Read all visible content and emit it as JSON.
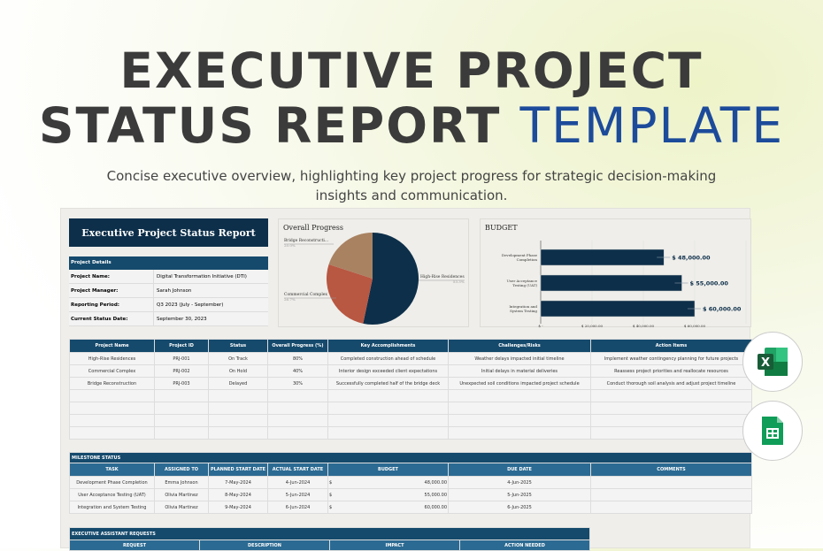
{
  "hero": {
    "title_line1": "EXECUTIVE PROJECT",
    "title_line2_dark": "STATUS REPORT",
    "title_line2_accent": "TEMPLATE",
    "subtitle": "Concise executive overview, highlighting key project progress for strategic decision-making insights and communication."
  },
  "report": {
    "title": "Executive Project Status Report",
    "details": {
      "header": "Project Details",
      "rows": [
        {
          "label": "Project Name:",
          "value": "Digital Transformation Initiative (DTI)"
        },
        {
          "label": "Project Manager:",
          "value": "Sarah Johnson"
        },
        {
          "label": "Reporting Period:",
          "value": "Q3 2023 (July - September)"
        },
        {
          "label": "Current Status Date:",
          "value": "September 30, 2023"
        }
      ]
    }
  },
  "chart_data": [
    {
      "type": "pie",
      "title": "Overall Progress",
      "slices": [
        {
          "label": "High-Rise Residences",
          "value": 53.3,
          "pct": "53.3%",
          "color": "#0d2f4a"
        },
        {
          "label": "Commercial Complex",
          "value": 26.7,
          "pct": "26.7%",
          "color": "#b85742"
        },
        {
          "label": "Bridge Reconstructi...",
          "value": 20.0,
          "pct": "20.0%",
          "color": "#a98262"
        }
      ]
    },
    {
      "type": "bar",
      "orientation": "horizontal",
      "title": "BUDGET",
      "categories": [
        "Development Phase Completion",
        "User Acceptance Testing (UAT)",
        "Integration and System Testing"
      ],
      "values": [
        48000,
        55000,
        60000
      ],
      "data_labels": [
        "$ 48,000.00",
        "$ 55,000.00",
        "$ 60,000.00"
      ],
      "xlim": [
        0,
        80000
      ],
      "tick_labels": [
        "$ -",
        "$ 20,000.00",
        "$ 40,000.00",
        "$ 60,000.00"
      ],
      "grid": true,
      "color": "#0d2f4a"
    }
  ],
  "projects": {
    "headers": [
      "Project Name",
      "Project ID",
      "Status",
      "Overall Progress (%)",
      "Key Accomplishments",
      "Challenges/Risks",
      "Action Items"
    ],
    "rows": [
      [
        "High-Rise Residences",
        "PRJ-001",
        "On Track",
        "80%",
        "Completed construction ahead of schedule",
        "Weather delays impacted initial timeline",
        "Implement weather contingency planning for future projects"
      ],
      [
        "Commercial Complex",
        "PRJ-002",
        "On Hold",
        "40%",
        "Interior design exceeded client expectations",
        "Initial delays in material deliveries",
        "Reassess project priorities and reallocate resources"
      ],
      [
        "Bridge Reconstruction",
        "PRJ-003",
        "Delayed",
        "30%",
        "Successfully completed half of the bridge deck",
        "Unexpected soil conditions impacted project schedule",
        "Conduct thorough soil analysis and adjust project timeline"
      ]
    ]
  },
  "milestones": {
    "title": "MILESTONE STATUS",
    "headers": [
      "TASK",
      "ASSIGNED TO",
      "PLANNED START DATE",
      "ACTUAL START DATE",
      "BUDGET",
      "DUE DATE",
      "COMMENTS"
    ],
    "rows": [
      [
        "Development Phase Completion",
        "Emma Johnson",
        "7-May-2024",
        "4-Jun-2024",
        "$",
        "48,000.00",
        "4-Jun-2025",
        ""
      ],
      [
        "User Acceptance Testing (UAT)",
        "Olivia Martinez",
        "8-May-2024",
        "5-Jun-2024",
        "$",
        "55,000.00",
        "5-Jun-2025",
        ""
      ],
      [
        "Integration and System Testing",
        "Olivia Martinez",
        "9-May-2024",
        "6-Jun-2024",
        "$",
        "60,000.00",
        "6-Jun-2025",
        ""
      ]
    ]
  },
  "requests": {
    "title": "EXECUTIVE ASSISTANT REQUESTS",
    "headers": [
      "REQUEST",
      "DESCRIPTION",
      "IMPACT",
      "ACTION NEEDED"
    ]
  },
  "apps": [
    {
      "icon": "excel-icon",
      "color": "#1d6f42"
    },
    {
      "icon": "google-sheets-icon",
      "color": "#0f9d58"
    }
  ]
}
